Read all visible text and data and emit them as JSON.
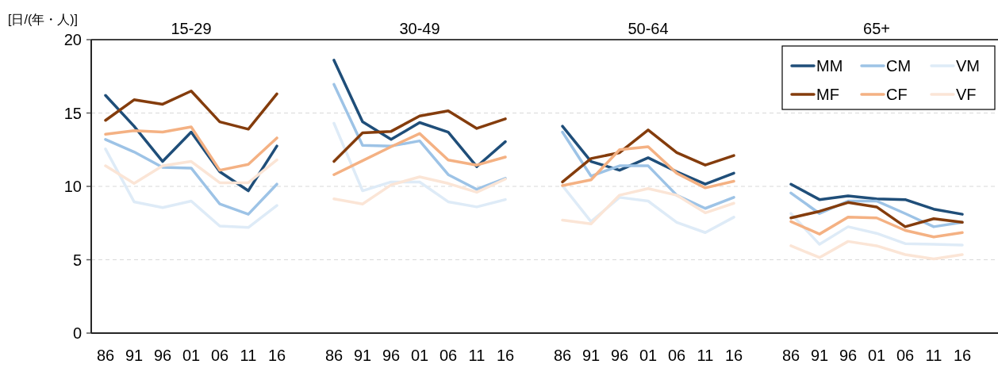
{
  "chart_data": [
    {
      "type": "line",
      "title": "15-29",
      "ylabel": "[日/(年・人)]",
      "categories": [
        "86",
        "91",
        "96",
        "01",
        "06",
        "11",
        "16"
      ],
      "ylim": [
        0,
        20
      ],
      "yticks": [
        0,
        5,
        10,
        15,
        20
      ],
      "grid": "y",
      "line_style": "solid",
      "marker": "none",
      "series": [
        {
          "color": "#1f4e79",
          "values": [
            16.2,
            14.1,
            11.7,
            13.7,
            11.0,
            9.7,
            12.75
          ]
        },
        {
          "color": "#9dc3e6",
          "values": [
            13.2,
            12.35,
            11.3,
            11.25,
            8.8,
            8.1,
            10.15
          ]
        },
        {
          "color": "#deebf7",
          "values": [
            12.55,
            8.95,
            8.55,
            9.0,
            7.3,
            7.2,
            8.7
          ]
        },
        {
          "color": "#843c0c",
          "values": [
            14.5,
            15.9,
            15.6,
            16.5,
            14.4,
            13.9,
            16.3
          ]
        },
        {
          "color": "#f4b183",
          "values": [
            13.55,
            13.8,
            13.7,
            14.05,
            11.1,
            11.5,
            13.3
          ]
        },
        {
          "color": "#fbe5d6",
          "values": [
            11.4,
            10.2,
            11.4,
            11.7,
            10.25,
            10.25,
            11.8
          ]
        }
      ]
    },
    {
      "type": "line",
      "title": "30-49",
      "categories": [
        "86",
        "91",
        "96",
        "01",
        "06",
        "11",
        "16"
      ],
      "ylim": [
        0,
        20
      ],
      "yticks": [
        0,
        5,
        10,
        15,
        20
      ],
      "grid": "y",
      "tick_labels": "x",
      "line_style": "solid",
      "marker": "none",
      "series": [
        {
          "color": "#1f4e79",
          "values": [
            18.6,
            14.4,
            13.2,
            14.35,
            13.7,
            11.35,
            13.05
          ]
        },
        {
          "color": "#9dc3e6",
          "values": [
            16.95,
            12.8,
            12.75,
            13.1,
            10.8,
            9.8,
            10.55
          ]
        },
        {
          "color": "#deebf7",
          "values": [
            14.3,
            9.7,
            10.3,
            10.3,
            8.95,
            8.6,
            9.1
          ]
        },
        {
          "color": "#843c0c",
          "values": [
            11.7,
            13.65,
            13.75,
            14.8,
            15.15,
            13.95,
            14.6
          ]
        },
        {
          "color": "#f4b183",
          "values": [
            10.8,
            11.75,
            12.7,
            13.6,
            11.8,
            11.45,
            12.0
          ]
        },
        {
          "color": "#fbe5d6",
          "values": [
            9.15,
            8.8,
            10.1,
            10.65,
            10.2,
            9.6,
            10.5
          ]
        }
      ]
    },
    {
      "type": "line",
      "title": "50-64",
      "categories": [
        "86",
        "91",
        "96",
        "01",
        "06",
        "11",
        "16"
      ],
      "ylim": [
        0,
        20
      ],
      "yticks": [
        0,
        5,
        10,
        15,
        20
      ],
      "grid": "y",
      "tick_labels": "x",
      "line_style": "solid",
      "marker": "none",
      "series": [
        {
          "color": "#1f4e79",
          "values": [
            14.1,
            11.7,
            11.1,
            11.95,
            11.0,
            10.15,
            10.9
          ]
        },
        {
          "color": "#9dc3e6",
          "values": [
            13.7,
            10.7,
            11.4,
            11.4,
            9.4,
            8.5,
            9.25
          ]
        },
        {
          "color": "#deebf7",
          "values": [
            10.05,
            7.6,
            9.25,
            9.0,
            7.55,
            6.85,
            7.9
          ]
        },
        {
          "color": "#843c0c",
          "values": [
            10.3,
            11.9,
            12.3,
            13.85,
            12.3,
            11.45,
            12.1
          ]
        },
        {
          "color": "#f4b183",
          "values": [
            10.05,
            10.45,
            12.5,
            12.7,
            10.9,
            9.9,
            10.35
          ]
        },
        {
          "color": "#fbe5d6",
          "values": [
            7.7,
            7.45,
            9.4,
            9.85,
            9.4,
            8.2,
            8.85
          ]
        }
      ]
    },
    {
      "type": "line",
      "title": "65+",
      "categories": [
        "86",
        "91",
        "96",
        "01",
        "06",
        "11",
        "16"
      ],
      "ylim": [
        0,
        20
      ],
      "yticks": [
        0,
        5,
        10,
        15,
        20
      ],
      "grid": "y",
      "tick_labels": "x",
      "line_style": "solid",
      "marker": "none",
      "legend": "top right",
      "series": [
        {
          "name": "MM",
          "color": "#1f4e79",
          "values": [
            10.15,
            9.1,
            9.35,
            9.15,
            9.1,
            8.45,
            8.1
          ]
        },
        {
          "name": "CM",
          "color": "#9dc3e6",
          "values": [
            9.55,
            8.15,
            9.0,
            9.0,
            8.15,
            7.25,
            7.55
          ]
        },
        {
          "name": "VM",
          "color": "#deebf7",
          "values": [
            8.15,
            6.05,
            7.25,
            6.8,
            6.1,
            6.05,
            6.0
          ]
        },
        {
          "name": "MF",
          "color": "#843c0c",
          "values": [
            7.85,
            8.3,
            8.9,
            8.6,
            7.25,
            7.8,
            7.55
          ]
        },
        {
          "name": "CF",
          "color": "#f4b183",
          "values": [
            7.6,
            6.75,
            7.9,
            7.85,
            7.0,
            6.55,
            6.85
          ]
        },
        {
          "name": "VF",
          "color": "#fbe5d6",
          "values": [
            5.95,
            5.15,
            6.25,
            5.95,
            5.35,
            5.05,
            5.35
          ]
        }
      ]
    }
  ]
}
